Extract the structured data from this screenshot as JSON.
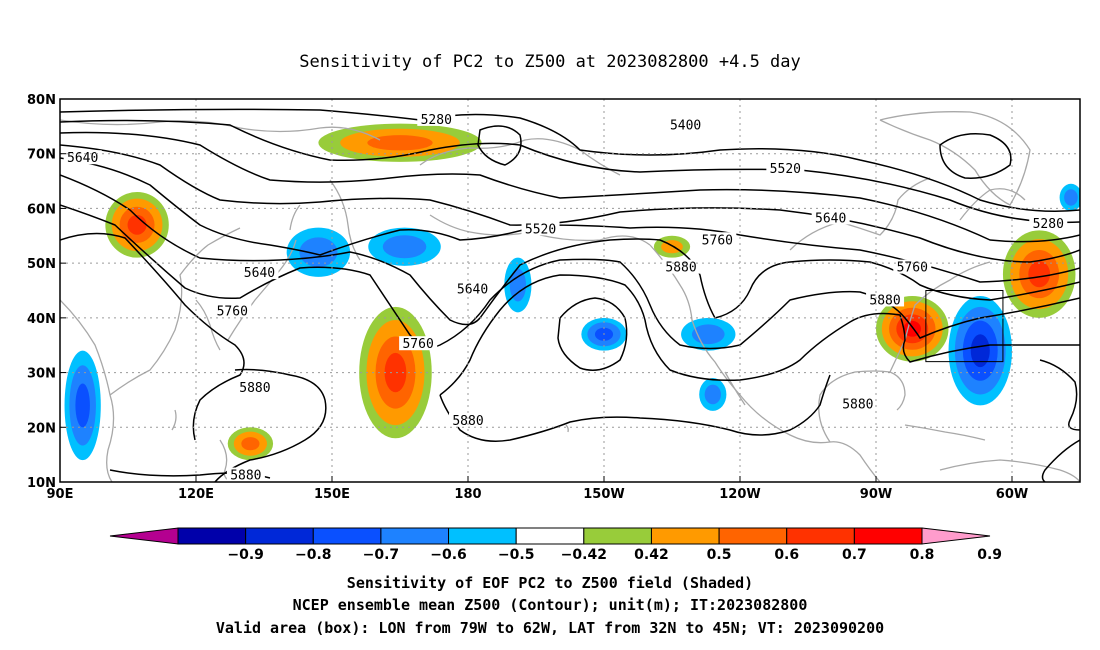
{
  "title": "Sensitivity of PC2 to Z500 at 2023082800 +4.5 day",
  "map": {
    "lon_ticks": [
      {
        "lon": 90,
        "label": "90E"
      },
      {
        "lon": 120,
        "label": "120E"
      },
      {
        "lon": 150,
        "label": "150E"
      },
      {
        "lon": 180,
        "label": "180"
      },
      {
        "lon": 210,
        "label": "150W"
      },
      {
        "lon": 240,
        "label": "120W"
      },
      {
        "lon": 270,
        "label": "90W"
      },
      {
        "lon": 300,
        "label": "60W"
      }
    ],
    "lat_ticks": [
      {
        "lat": 80,
        "label": "80N"
      },
      {
        "lat": 70,
        "label": "70N"
      },
      {
        "lat": 60,
        "label": "60N"
      },
      {
        "lat": 50,
        "label": "50N"
      },
      {
        "lat": 40,
        "label": "40N"
      },
      {
        "lat": 30,
        "label": "30N"
      },
      {
        "lat": 20,
        "label": "20N"
      },
      {
        "lat": 10,
        "label": "10N"
      }
    ],
    "lon_range": [
      90,
      315
    ],
    "lat_range": [
      10,
      80
    ],
    "grid": true,
    "contour_labels": [
      {
        "text": "5280",
        "lon": 173,
        "lat": 76
      },
      {
        "text": "5400",
        "lon": 228,
        "lat": 75
      },
      {
        "text": "5640",
        "lon": 95,
        "lat": 69
      },
      {
        "text": "5520",
        "lon": 250,
        "lat": 67
      },
      {
        "text": "5280",
        "lon": 308,
        "lat": 57
      },
      {
        "text": "5640",
        "lon": 260,
        "lat": 58
      },
      {
        "text": "5520",
        "lon": 196,
        "lat": 56
      },
      {
        "text": "5760",
        "lon": 235,
        "lat": 54
      },
      {
        "text": "5880",
        "lon": 227,
        "lat": 49
      },
      {
        "text": "5760",
        "lon": 278,
        "lat": 49
      },
      {
        "text": "5640",
        "lon": 134,
        "lat": 48
      },
      {
        "text": "5640",
        "lon": 181,
        "lat": 45
      },
      {
        "text": "5880",
        "lon": 272,
        "lat": 43
      },
      {
        "text": "5760",
        "lon": 128,
        "lat": 41
      },
      {
        "text": "5760",
        "lon": 169,
        "lat": 35
      },
      {
        "text": "5880",
        "lon": 133,
        "lat": 27
      },
      {
        "text": "5880",
        "lon": 266,
        "lat": 24
      },
      {
        "text": "5880",
        "lon": 180,
        "lat": 21
      },
      {
        "text": "5880",
        "lon": 131,
        "lat": 11
      }
    ],
    "valid_box": {
      "lon_min": 281,
      "lon_max": 298,
      "lat_min": 32,
      "lat_max": 45
    }
  },
  "sensitivity_shading": [
    {
      "lon": 107,
      "lat": 57,
      "rx": 7,
      "ry": 6,
      "value": 0.7
    },
    {
      "lon": 165,
      "lat": 72,
      "rx": 18,
      "ry": 3.5,
      "value": 0.6
    },
    {
      "lon": 164,
      "lat": 30,
      "rx": 8,
      "ry": 12,
      "value": 0.7
    },
    {
      "lon": 132,
      "lat": 17,
      "rx": 5,
      "ry": 3,
      "value": 0.6
    },
    {
      "lon": 147,
      "lat": 52,
      "rx": 7,
      "ry": 4.5,
      "value": -0.5
    },
    {
      "lon": 166,
      "lat": 53,
      "rx": 8,
      "ry": 3.5,
      "value": -0.5
    },
    {
      "lon": 191,
      "lat": 46,
      "rx": 3,
      "ry": 5,
      "value": -0.5
    },
    {
      "lon": 210,
      "lat": 37,
      "rx": 5,
      "ry": 3,
      "value": -0.6
    },
    {
      "lon": 233,
      "lat": 37,
      "rx": 6,
      "ry": 3,
      "value": -0.5
    },
    {
      "lon": 234,
      "lat": 26,
      "rx": 3,
      "ry": 3,
      "value": -0.5
    },
    {
      "lon": 225,
      "lat": 53,
      "rx": 4,
      "ry": 2,
      "value": 0.5
    },
    {
      "lon": 278,
      "lat": 38,
      "rx": 8,
      "ry": 6,
      "value": 0.8
    },
    {
      "lon": 293,
      "lat": 34,
      "rx": 7,
      "ry": 10,
      "value": -0.7
    },
    {
      "lon": 306,
      "lat": 48,
      "rx": 8,
      "ry": 8,
      "value": 0.7
    },
    {
      "lon": 95,
      "lat": 24,
      "rx": 4,
      "ry": 10,
      "value": -0.6
    },
    {
      "lon": 313,
      "lat": 62,
      "rx": 2.5,
      "ry": 2.5,
      "value": -0.5
    }
  ],
  "colorbar": {
    "colors": [
      "#b40090",
      "#0000aa",
      "#0028d8",
      "#0a50ff",
      "#1e82ff",
      "#00c0ff",
      "#ffffff",
      "#98cc3a",
      "#ff9a00",
      "#ff6400",
      "#ff3200",
      "#ff0000",
      "#ff9ccc"
    ],
    "labels": [
      "−0.9",
      "−0.8",
      "−0.7",
      "−0.6",
      "−0.5",
      "−0.42",
      "0.42",
      "0.5",
      "0.6",
      "0.7",
      "0.8",
      "0.9"
    ]
  },
  "caption": {
    "line1": "Sensitivity of EOF PC2 to Z500 field (Shaded)",
    "line2": "NCEP ensemble mean Z500 (Contour); unit(m); IT:2023082800",
    "line3": "Valid area (box): LON from 79W to 62W, LAT from 32N to 45N; VT: 2023090200"
  }
}
